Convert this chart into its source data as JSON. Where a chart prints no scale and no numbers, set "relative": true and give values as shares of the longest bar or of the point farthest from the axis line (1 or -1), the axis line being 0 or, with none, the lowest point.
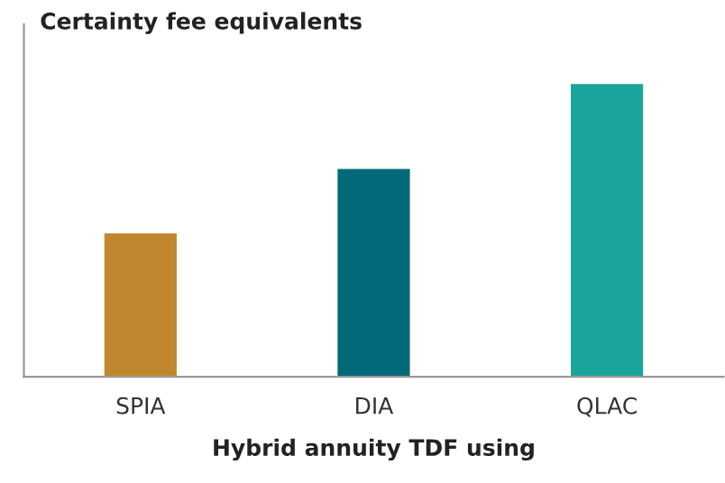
{
  "chart_data": {
    "type": "bar",
    "title": "Certainty fee equivalents",
    "xlabel": "Hybrid annuity TDF using",
    "categories": [
      "SPIA",
      "DIA",
      "QLAC"
    ],
    "values": [
      0.49,
      0.71,
      1
    ],
    "colors": [
      "#c1872e",
      "#006a78",
      "#1aa59c"
    ],
    "relative": true,
    "grid": false
  }
}
